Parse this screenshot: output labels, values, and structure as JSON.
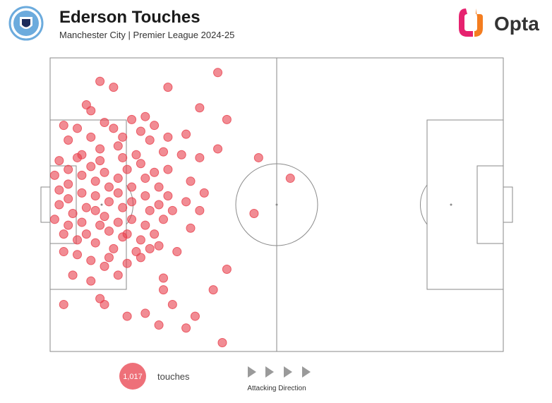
{
  "header": {
    "title": "Ederson Touches",
    "subtitle": "Manchester City | Premier League 2024-25",
    "brand": "Opta"
  },
  "chart_data": {
    "type": "scatter",
    "color": "#e8404c",
    "xlim": [
      0,
      100
    ],
    "ylim": [
      0,
      100
    ],
    "x": [
      11,
      14,
      26,
      37,
      8,
      9,
      33,
      39,
      46,
      53,
      45,
      39,
      36,
      38,
      30,
      32,
      24,
      27,
      21,
      17,
      12,
      11,
      3,
      25,
      25,
      9,
      5,
      12,
      15,
      20,
      22,
      28,
      31,
      33,
      30,
      34,
      31,
      33,
      30,
      29,
      37,
      25,
      22,
      20,
      18,
      21,
      23,
      26,
      16,
      14,
      12,
      9,
      6,
      4,
      3,
      7,
      11,
      15,
      19,
      1,
      2,
      2,
      1,
      3,
      4,
      4,
      4,
      5,
      4,
      6,
      7,
      7,
      8,
      7,
      8,
      9,
      10,
      10,
      10,
      11,
      10,
      12,
      13,
      13,
      12,
      13,
      14,
      15,
      15,
      16,
      15,
      16,
      17,
      18,
      18,
      18,
      17,
      19,
      20,
      21,
      21,
      22,
      21,
      20,
      23,
      24,
      24,
      25,
      23,
      26,
      27,
      26,
      24,
      6,
      9,
      3,
      13,
      17,
      2,
      6,
      11,
      16
    ],
    "values": [
      8,
      10,
      10,
      5,
      16,
      18,
      17,
      21,
      34,
      41,
      53,
      72,
      79,
      97,
      92,
      88,
      91,
      84,
      87,
      88,
      84,
      82,
      84,
      79,
      75,
      76,
      74,
      71,
      74,
      68,
      65,
      66,
      58,
      52,
      49,
      46,
      42,
      34,
      26,
      33,
      31,
      32,
      28,
      25,
      21,
      20,
      23,
      27,
      27,
      24,
      22,
      27,
      24,
      28,
      23,
      33,
      31,
      30,
      33,
      40,
      45,
      50,
      55,
      60,
      38,
      43,
      48,
      53,
      57,
      62,
      40,
      46,
      51,
      56,
      60,
      37,
      42,
      47,
      52,
      57,
      63,
      39,
      44,
      49,
      54,
      59,
      65,
      41,
      46,
      51,
      56,
      61,
      38,
      44,
      49,
      55,
      60,
      66,
      36,
      41,
      47,
      52,
      57,
      62,
      39,
      44,
      50,
      55,
      60,
      47,
      52,
      38,
      64,
      67,
      69,
      66,
      68,
      70,
      35,
      34,
      35,
      34
    ],
    "total": {
      "value": 1017,
      "label": "1,017"
    },
    "total_caption": "touches",
    "direction_label": "Attacking Direction"
  }
}
